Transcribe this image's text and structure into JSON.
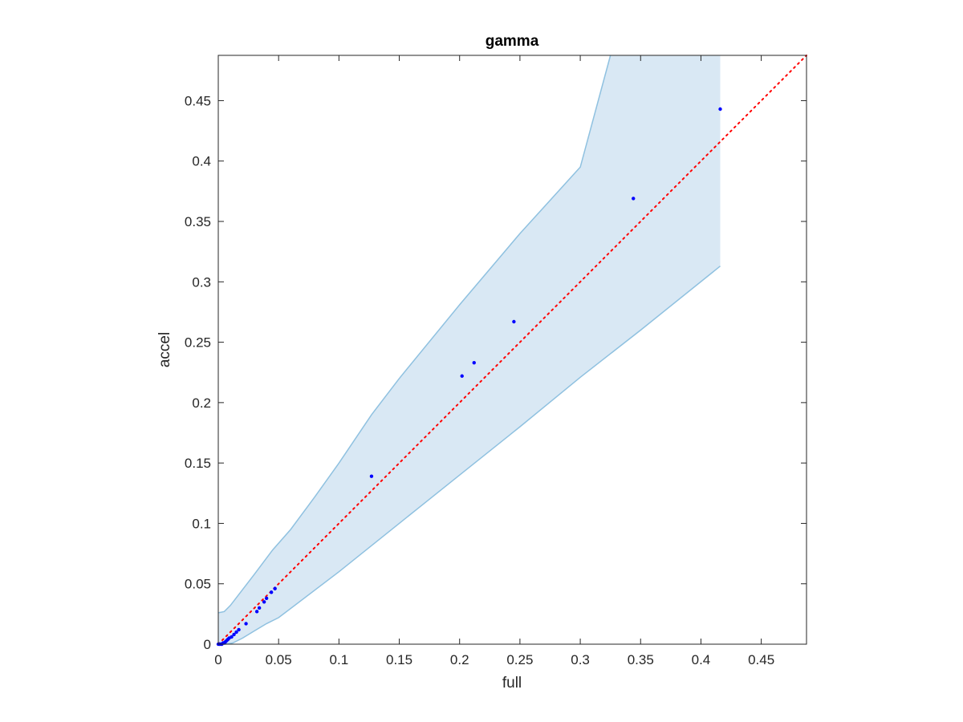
{
  "chart_data": {
    "type": "scatter",
    "title": "gamma",
    "xlabel": "full",
    "ylabel": "accel",
    "xlim": [
      0,
      0.4875
    ],
    "ylim": [
      0,
      0.4875
    ],
    "xticks": [
      0,
      0.05,
      0.1,
      0.15,
      0.2,
      0.25,
      0.3,
      0.35,
      0.4,
      0.45
    ],
    "yticks": [
      0,
      0.05,
      0.1,
      0.15,
      0.2,
      0.25,
      0.3,
      0.35,
      0.4,
      0.45
    ],
    "xtick_labels": [
      "0",
      "0.05",
      "0.1",
      "0.15",
      "0.2",
      "0.25",
      "0.3",
      "0.35",
      "0.4",
      "0.45"
    ],
    "ytick_labels": [
      "0",
      "0.05",
      "0.1",
      "0.15",
      "0.2",
      "0.25",
      "0.3",
      "0.35",
      "0.4",
      "0.45"
    ],
    "grid": false,
    "colors": {
      "points": "#0000ff",
      "reference_line": "#ff0000",
      "band_fill": "#d9e8f4",
      "band_edge": "#8fc1e0",
      "axes": "#262626"
    },
    "points": {
      "x": [
        0.0,
        0.001,
        0.002,
        0.003,
        0.004,
        0.005,
        0.006,
        0.007,
        0.008,
        0.009,
        0.011,
        0.013,
        0.015,
        0.017,
        0.023,
        0.032,
        0.034,
        0.038,
        0.04,
        0.044,
        0.047,
        0.127,
        0.202,
        0.212,
        0.245,
        0.344,
        0.416
      ],
      "y": [
        0.0,
        0.0,
        0.0,
        0.0,
        0.001,
        0.001,
        0.002,
        0.003,
        0.004,
        0.005,
        0.006,
        0.008,
        0.01,
        0.012,
        0.017,
        0.027,
        0.03,
        0.035,
        0.038,
        0.043,
        0.046,
        0.139,
        0.222,
        0.233,
        0.267,
        0.369,
        0.443
      ]
    },
    "reference_line": {
      "x": [
        0,
        0.4875
      ],
      "y": [
        0,
        0.4875
      ]
    },
    "band_upper": {
      "x": [
        0,
        0.005,
        0.01,
        0.02,
        0.03,
        0.045,
        0.06,
        0.08,
        0.1,
        0.127,
        0.15,
        0.2,
        0.25,
        0.3,
        0.325
      ],
      "y": [
        0.026,
        0.027,
        0.032,
        0.045,
        0.058,
        0.078,
        0.095,
        0.122,
        0.15,
        0.19,
        0.22,
        0.281,
        0.34,
        0.395,
        0.4875
      ]
    },
    "band_upper_right": {
      "x": [
        0.416,
        0.416
      ],
      "y": [
        0.4875,
        0.313
      ]
    },
    "band_lower": {
      "x": [
        0.416,
        0.35,
        0.3,
        0.25,
        0.2,
        0.15,
        0.1,
        0.05,
        0.04,
        0.03,
        0.02,
        0.012,
        0.006,
        0
      ],
      "y": [
        0.313,
        0.26,
        0.221,
        0.18,
        0.14,
        0.1,
        0.06,
        0.022,
        0.017,
        0.011,
        0.005,
        0.001,
        0,
        0
      ]
    }
  }
}
